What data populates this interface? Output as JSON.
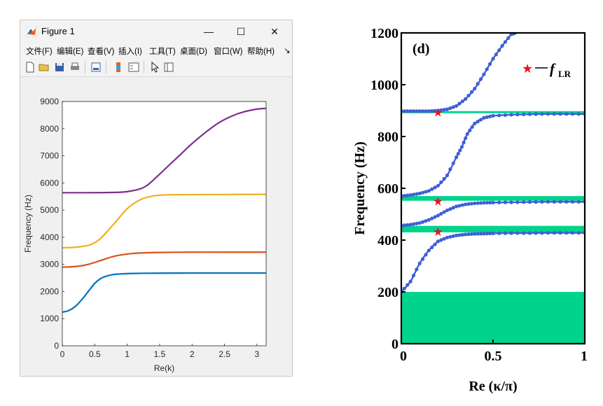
{
  "window": {
    "title": "Figure 1",
    "minimize_glyph": "—",
    "maximize_glyph": "☐",
    "close_glyph": "✕",
    "menu": [
      {
        "label": "文件(F)"
      },
      {
        "label": "编辑(E)"
      },
      {
        "label": "查看(V)"
      },
      {
        "label": "插入(I)"
      },
      {
        "label": "工具(T)"
      },
      {
        "label": "桌面(D)"
      },
      {
        "label": "窗口(W)"
      },
      {
        "label": "帮助(H)"
      }
    ],
    "menu_overflow_glyph": "↘",
    "toolbar_icons": [
      "new-figure-icon",
      "open-file-icon",
      "save-icon",
      "print-icon",
      "print-preview-icon",
      "colorbar-icon",
      "legend-icon",
      "pointer-icon",
      "property-inspector-icon"
    ],
    "axes_toolbar_icons": [
      "brush-icon",
      "data-tips-icon",
      "rotate-icon",
      "pan-icon",
      "zoom-in-icon",
      "zoom-out-icon",
      "home-icon"
    ]
  },
  "chart_data": [
    {
      "type": "line",
      "title": "",
      "xlabel": "Re(k)",
      "ylabel": "Frequency (Hz)",
      "xlim": [
        0,
        3.1416
      ],
      "ylim": [
        0,
        9000
      ],
      "xticks": [
        "0",
        "0.5",
        "1",
        "1.5",
        "2",
        "2.5",
        "3"
      ],
      "xtick_values": [
        0,
        0.5,
        1,
        1.5,
        2,
        2.5,
        3
      ],
      "yticks": [
        "0",
        "1000",
        "2000",
        "3000",
        "4000",
        "5000",
        "6000",
        "7000",
        "8000",
        "9000"
      ],
      "ytick_values": [
        0,
        1000,
        2000,
        3000,
        4000,
        5000,
        6000,
        7000,
        8000,
        9000
      ],
      "grid": false,
      "series": [
        {
          "color": "#0072bd",
          "x": [
            0,
            0.1,
            0.2,
            0.3,
            0.4,
            0.5,
            0.6,
            0.7,
            0.8,
            1.0,
            1.2,
            1.5,
            2.0,
            2.5,
            3.1416
          ],
          "y": [
            1240,
            1300,
            1450,
            1700,
            2000,
            2300,
            2490,
            2580,
            2630,
            2660,
            2670,
            2675,
            2680,
            2680,
            2680
          ]
        },
        {
          "color": "#d95319",
          "x": [
            0,
            0.2,
            0.4,
            0.6,
            0.8,
            1.0,
            1.2,
            1.5,
            2.0,
            2.5,
            3.1416
          ],
          "y": [
            2900,
            2920,
            3000,
            3150,
            3300,
            3380,
            3420,
            3440,
            3450,
            3450,
            3450
          ]
        },
        {
          "color": "#edb120",
          "x": [
            0,
            0.2,
            0.4,
            0.5,
            0.6,
            0.8,
            1.0,
            1.2,
            1.4,
            1.6,
            2.0,
            2.5,
            3.1416
          ],
          "y": [
            3610,
            3630,
            3700,
            3800,
            3980,
            4500,
            5050,
            5380,
            5520,
            5560,
            5570,
            5575,
            5580
          ]
        },
        {
          "color": "#7e2f8e",
          "x": [
            0,
            0.4,
            0.8,
            1.0,
            1.2,
            1.3,
            1.4,
            1.6,
            1.8,
            2.0,
            2.2,
            2.4,
            2.6,
            2.8,
            3.0,
            3.1416
          ],
          "y": [
            5640,
            5640,
            5650,
            5680,
            5780,
            5900,
            6100,
            6550,
            7000,
            7450,
            7850,
            8200,
            8450,
            8620,
            8720,
            8750
          ]
        }
      ]
    },
    {
      "type": "line",
      "title": "",
      "panel_label": "(d)",
      "xlabel": "Re (κ/π)",
      "ylabel": "Frequency (Hz)",
      "xlim": [
        0,
        1
      ],
      "ylim": [
        0,
        1200
      ],
      "xticks": [
        "0",
        "0.5",
        "1"
      ],
      "xtick_values": [
        0,
        0.5,
        1
      ],
      "yticks": [
        "0",
        "200",
        "400",
        "600",
        "800",
        "1000",
        "1200"
      ],
      "ytick_values": [
        0,
        200,
        400,
        600,
        800,
        1000,
        1200
      ],
      "grid": false,
      "legend": {
        "position": "top-right",
        "marker": "★",
        "label_main": "f",
        "label_sub": "LR"
      },
      "bandgaps": [
        {
          "y0": 0,
          "y1": 200
        },
        {
          "y0": 430,
          "y1": 455
        },
        {
          "y0": 552,
          "y1": 570
        },
        {
          "y0": 890,
          "y1": 898
        }
      ],
      "resonance_stars": [
        {
          "x": 0.2,
          "y": 893
        },
        {
          "x": 0.2,
          "y": 550
        },
        {
          "x": 0.2,
          "y": 432
        }
      ],
      "series": [
        {
          "color": "#3e5fd6",
          "x": [
            0,
            0.05,
            0.1,
            0.15,
            0.2,
            0.25,
            0.3,
            0.35,
            0.4,
            0.45,
            0.5,
            0.6,
            0.7,
            0.8,
            0.9,
            1.0
          ],
          "y": [
            200,
            240,
            310,
            360,
            395,
            410,
            418,
            422,
            424,
            425,
            426,
            427,
            427,
            428,
            428,
            428
          ]
        },
        {
          "color": "#3e5fd6",
          "x": [
            0,
            0.05,
            0.1,
            0.15,
            0.2,
            0.25,
            0.3,
            0.35,
            0.4,
            0.45,
            0.5,
            0.6,
            0.7,
            0.8,
            0.9,
            1.0
          ],
          "y": [
            456,
            460,
            466,
            478,
            495,
            515,
            530,
            538,
            542,
            544,
            545,
            546,
            547,
            548,
            548,
            548
          ]
        },
        {
          "color": "#3e5fd6",
          "x": [
            0,
            0.05,
            0.1,
            0.15,
            0.2,
            0.25,
            0.3,
            0.33,
            0.36,
            0.4,
            0.45,
            0.5,
            0.6,
            0.7,
            0.8,
            0.9,
            1.0
          ],
          "y": [
            570,
            574,
            580,
            590,
            610,
            650,
            720,
            760,
            810,
            850,
            872,
            880,
            884,
            886,
            887,
            887,
            887
          ]
        },
        {
          "color": "#3e5fd6",
          "x": [
            0,
            0.05,
            0.1,
            0.15,
            0.2,
            0.25,
            0.3,
            0.35,
            0.4,
            0.45,
            0.5,
            0.55,
            0.6,
            0.62
          ],
          "y": [
            898,
            898,
            898,
            898,
            900,
            905,
            918,
            945,
            985,
            1040,
            1100,
            1150,
            1195,
            1200
          ]
        }
      ]
    }
  ]
}
